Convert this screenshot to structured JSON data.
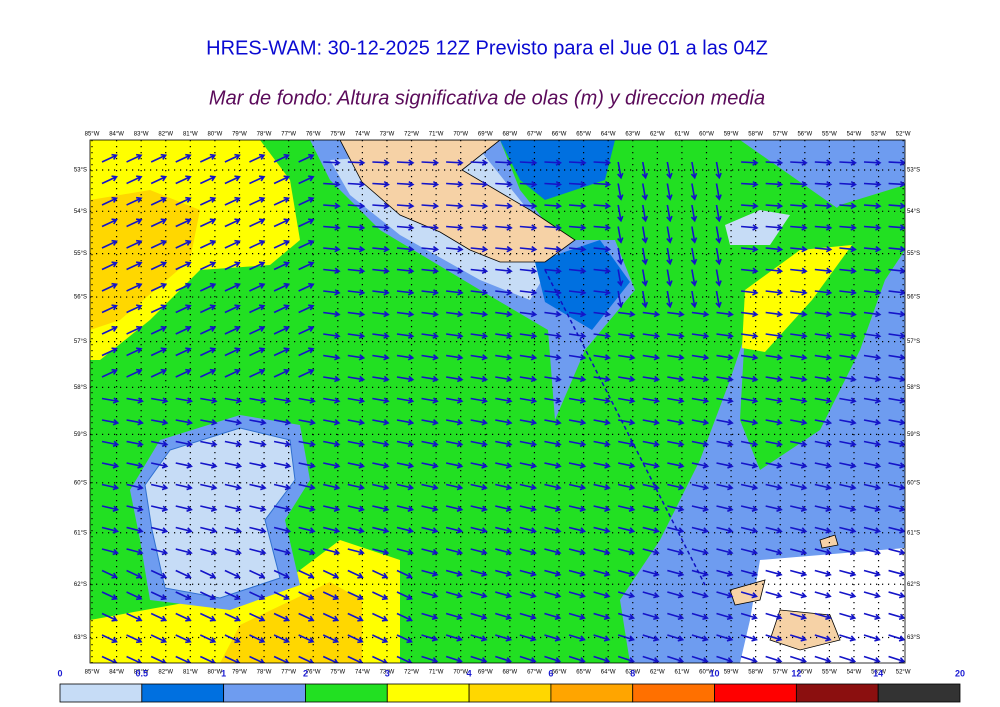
{
  "title": "HRES-WAM: 30-12-2025 12Z Previsto para el Jue 01 a las 04Z",
  "subtitle": "Mar de fondo: Altura significativa de olas (m) y direccion media",
  "longitudes": [
    "85°W",
    "84°W",
    "83°W",
    "82°W",
    "81°W",
    "80°W",
    "79°W",
    "78°W",
    "77°W",
    "76°W",
    "75°W",
    "74°W",
    "73°W",
    "72°W",
    "71°W",
    "70°W",
    "69°W",
    "68°W",
    "67°W",
    "66°W",
    "65°W",
    "64°W",
    "63°W",
    "62°W",
    "61°W",
    "60°W",
    "59°W",
    "58°W",
    "57°W",
    "56°W",
    "55°W",
    "54°W",
    "53°W",
    "52°W"
  ],
  "latitudes": [
    "53°S",
    "54°S",
    "55°S",
    "56°S",
    "57°S",
    "58°S",
    "59°S",
    "60°S",
    "61°S",
    "62°S",
    "63°S"
  ],
  "colorbar": {
    "ticks": [
      0,
      0.5,
      1,
      2,
      3,
      4,
      6,
      8,
      10,
      12,
      14,
      20
    ],
    "colors": [
      "#c6dcf6",
      "#0070e0",
      "#6e9cf0",
      "#22e022",
      "#ffff00",
      "#ffd700",
      "#ffa500",
      "#ff7000",
      "#ff0000",
      "#8b0f0f",
      "#333333"
    ]
  }
}
